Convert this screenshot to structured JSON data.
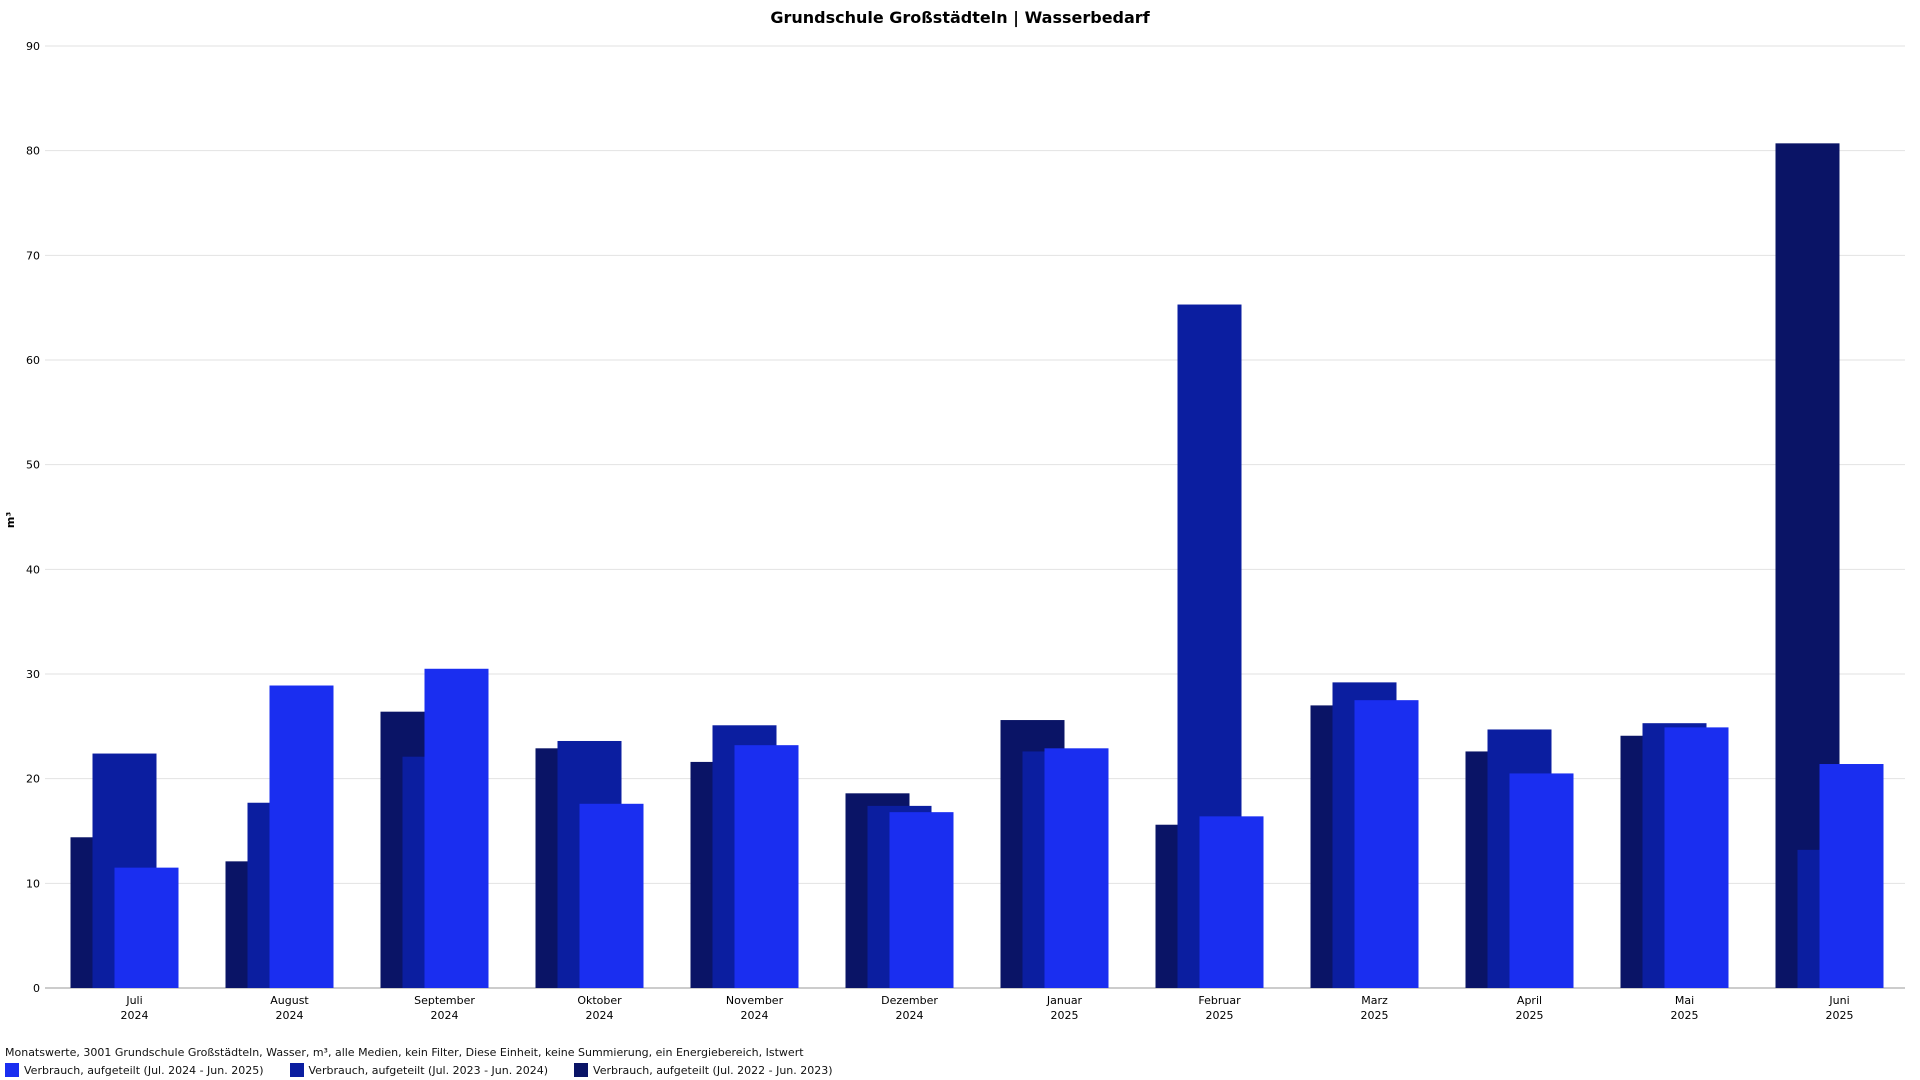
{
  "chart_data": {
    "type": "bar",
    "title": "Grundschule Großstädteln | Wasserbedarf",
    "ylabel": "m³",
    "xlabel": "",
    "ylim": [
      0,
      90
    ],
    "yticks": [
      0,
      10,
      20,
      30,
      40,
      50,
      60,
      70,
      80,
      90
    ],
    "grid": true,
    "categories": [
      {
        "month": "Juli",
        "year": "2024"
      },
      {
        "month": "August",
        "year": "2024"
      },
      {
        "month": "September",
        "year": "2024"
      },
      {
        "month": "Oktober",
        "year": "2024"
      },
      {
        "month": "November",
        "year": "2024"
      },
      {
        "month": "Dezember",
        "year": "2024"
      },
      {
        "month": "Januar",
        "year": "2025"
      },
      {
        "month": "Februar",
        "year": "2025"
      },
      {
        "month": "Marz",
        "year": "2025"
      },
      {
        "month": "April",
        "year": "2025"
      },
      {
        "month": "Mai",
        "year": "2025"
      },
      {
        "month": "Juni",
        "year": "2025"
      }
    ],
    "series": [
      {
        "name": "Verbrauch, aufgeteilt (Jul. 2022 - Jun. 2023)",
        "color": "#0a1466",
        "values": [
          14.4,
          12.1,
          26.4,
          22.9,
          21.6,
          18.6,
          25.6,
          15.6,
          27.0,
          22.6,
          24.1,
          80.7
        ]
      },
      {
        "name": "Verbrauch, aufgeteilt (Jul. 2023 - Jun. 2024)",
        "color": "#0b1ea0",
        "values": [
          22.4,
          17.7,
          22.1,
          23.6,
          25.1,
          17.4,
          22.6,
          65.3,
          29.2,
          24.7,
          25.3,
          13.2
        ]
      },
      {
        "name": "Verbrauch, aufgeteilt (Jul. 2024 - Jun. 2025)",
        "color": "#1a2ef0",
        "values": [
          11.5,
          28.9,
          30.5,
          17.6,
          23.2,
          16.8,
          22.9,
          16.4,
          27.5,
          20.5,
          24.9,
          21.4
        ]
      }
    ]
  },
  "footer_text": "Monatswerte, 3001 Grundschule Großstädteln, Wasser, m³, alle Medien, kein Filter, Diese Einheit, keine Summierung, ein Energiebereich, Istwert",
  "legend": [
    {
      "label": "Verbrauch, aufgeteilt (Jul. 2024 - Jun. 2025)",
      "color": "#1a2ef0"
    },
    {
      "label": "Verbrauch, aufgeteilt (Jul. 2023 - Jun. 2024)",
      "color": "#0b1ea0"
    },
    {
      "label": "Verbrauch, aufgeteilt (Jul. 2022 - Jun. 2023)",
      "color": "#0a1466"
    }
  ]
}
